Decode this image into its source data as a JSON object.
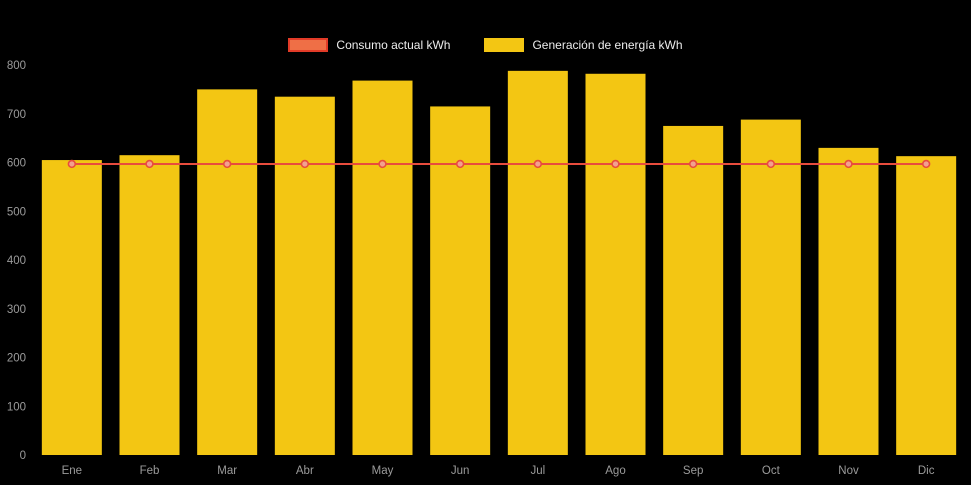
{
  "chart_data": {
    "type": "bar",
    "title": "",
    "categories": [
      "Ene",
      "Feb",
      "Mar",
      "Abr",
      "May",
      "Jun",
      "Jul",
      "Ago",
      "Sep",
      "Oct",
      "Nov",
      "Dic"
    ],
    "series": [
      {
        "name": "Consumo actual kWh",
        "type": "line",
        "color": "#e84c3d",
        "point_fill": "#f2a18f",
        "values": [
          597,
          597,
          597,
          597,
          597,
          597,
          597,
          597,
          597,
          597,
          597,
          597
        ]
      },
      {
        "name": "Generación de energía kWh",
        "type": "bar",
        "color": "#f3c613",
        "values": [
          605,
          615,
          750,
          735,
          768,
          715,
          788,
          782,
          675,
          688,
          630,
          613
        ]
      }
    ],
    "xlabel": "",
    "ylabel": "",
    "ylim": [
      0,
      800
    ],
    "ytick_step": 100,
    "grid": false,
    "legend_position": "top",
    "background_color": "#000000",
    "axis_text_color": "#9b9b9b"
  },
  "legend": {
    "items": [
      {
        "label": "Consumo actual kWh",
        "swatch_fill": "#ef6f46",
        "swatch_border": "#e23b27"
      },
      {
        "label": "Generación de energía kWh",
        "swatch_fill": "#f3c613",
        "swatch_border": "#f3c613"
      }
    ]
  }
}
